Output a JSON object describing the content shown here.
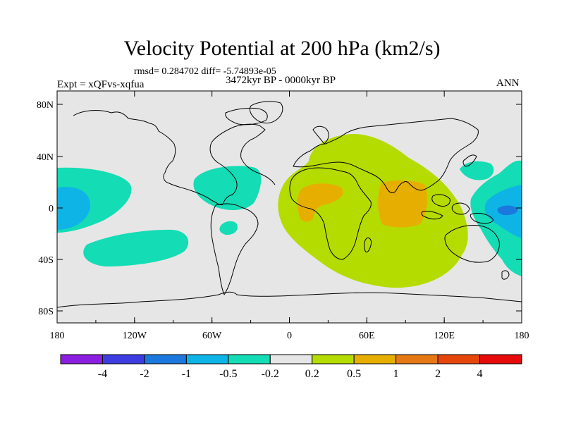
{
  "title": "Velocity Potential at 200 hPa (km2/s)",
  "stats": "rmsd= 0.284702 diff= -5.74893e-05",
  "period": "3472kyr BP - 0000kyr BP",
  "experiment": "Expt = xQFvs-xqfua",
  "season": "ANN",
  "lat_labels": [
    "80N",
    "40N",
    "0",
    "40S",
    "80S"
  ],
  "lon_labels": [
    "180",
    "120W",
    "60W",
    "0",
    "60E",
    "120E",
    "180"
  ],
  "colorbar": {
    "labels": [
      "-4",
      "-2",
      "-1",
      "-0.5",
      "-0.2",
      "0.2",
      "0.5",
      "1",
      "2",
      "4"
    ],
    "colors": [
      "#8b1ee0",
      "#3c3ce0",
      "#1b78dc",
      "#0fb4e6",
      "#14dcb4",
      "#e6e6e6",
      "#b4dc00",
      "#e6af00",
      "#e67814",
      "#e6460a",
      "#e60a0a"
    ]
  },
  "map_colors": {
    "ocean_bg": "#e6e6e6",
    "cyan_light": "#14dcb4",
    "cyan_mid": "#0fb4e6",
    "blue": "#1b78dc",
    "yellow_green": "#b4dc00",
    "orange": "#e6af00"
  }
}
